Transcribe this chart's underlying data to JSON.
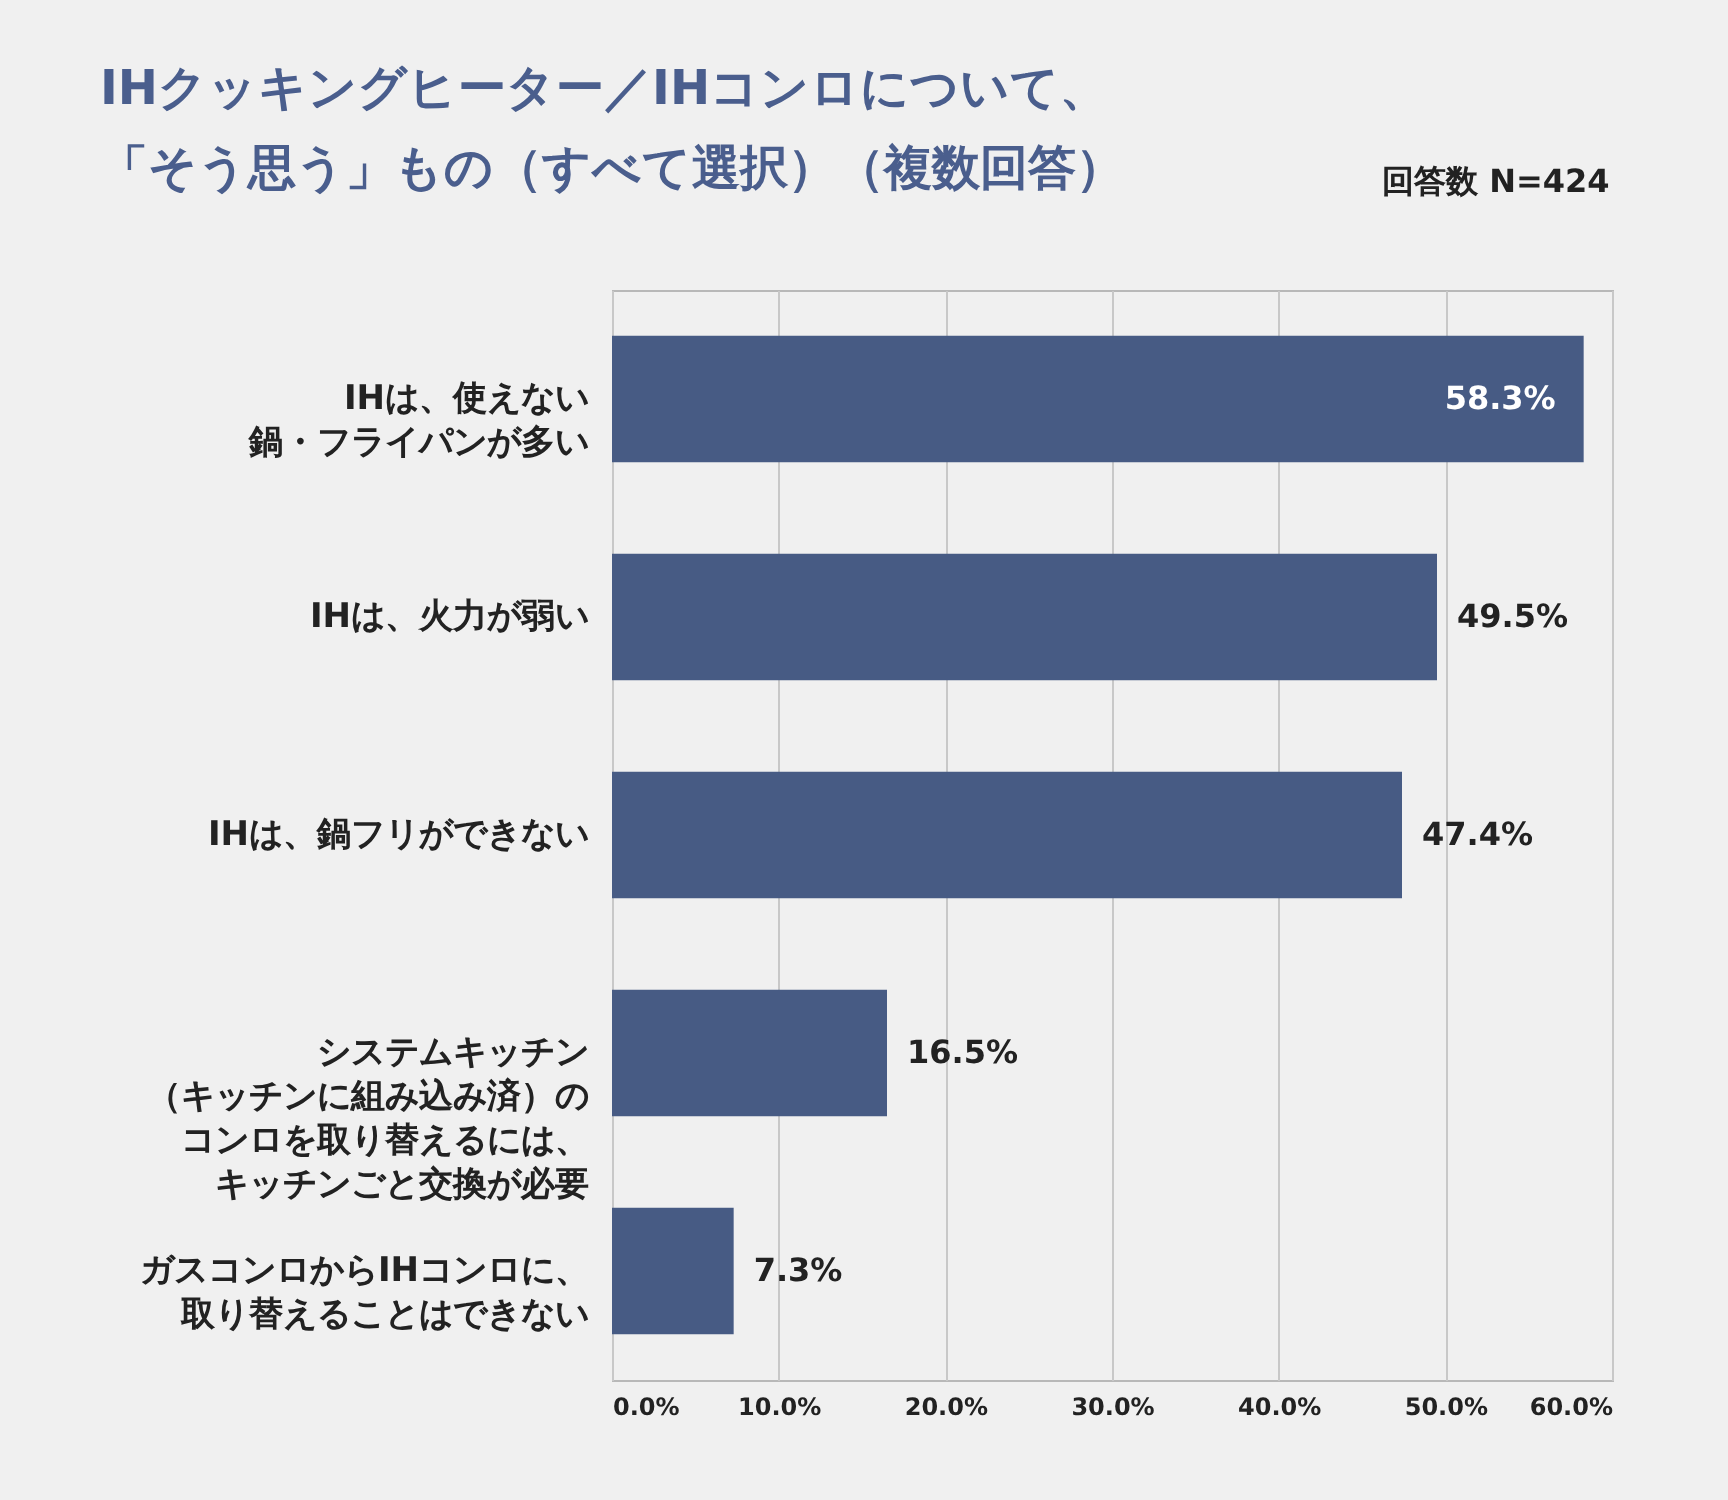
{
  "chart_data": {
    "type": "bar",
    "orientation": "horizontal",
    "title": "IHクッキングヒーター／IHコンロについて、「そう思う」もの（すべて選択）（複数回答）",
    "annotations": [
      "回答数  N=424"
    ],
    "categories": [
      "IHは、使えない鍋・フライパンが多い",
      "IHは、火力が弱い",
      "IHは、鍋フリができない",
      "システムキッチン（キッチンに組み込み済）のコンロを取り替えるには、キッチンごと交換が必要",
      "ガスコンロからIHコンロに、取り替えることはできない"
    ],
    "values": [
      58.3,
      49.5,
      47.4,
      16.5,
      7.3
    ],
    "value_labels": [
      "58.3%",
      "49.5%",
      "47.4%",
      "16.5%",
      "7.3%"
    ],
    "color": "#475b84",
    "xlim": [
      0,
      60
    ],
    "xticks": [
      {
        "value": 0,
        "label": "0.0%"
      },
      {
        "value": 10,
        "label": "10.0%"
      },
      {
        "value": 20,
        "label": "20.0%"
      },
      {
        "value": 30,
        "label": "30.0%"
      },
      {
        "value": 40,
        "label": "40.0%"
      },
      {
        "value": 50,
        "label": "50.0%"
      },
      {
        "value": 60,
        "label": "60.0%"
      }
    ],
    "grid": "x"
  }
}
